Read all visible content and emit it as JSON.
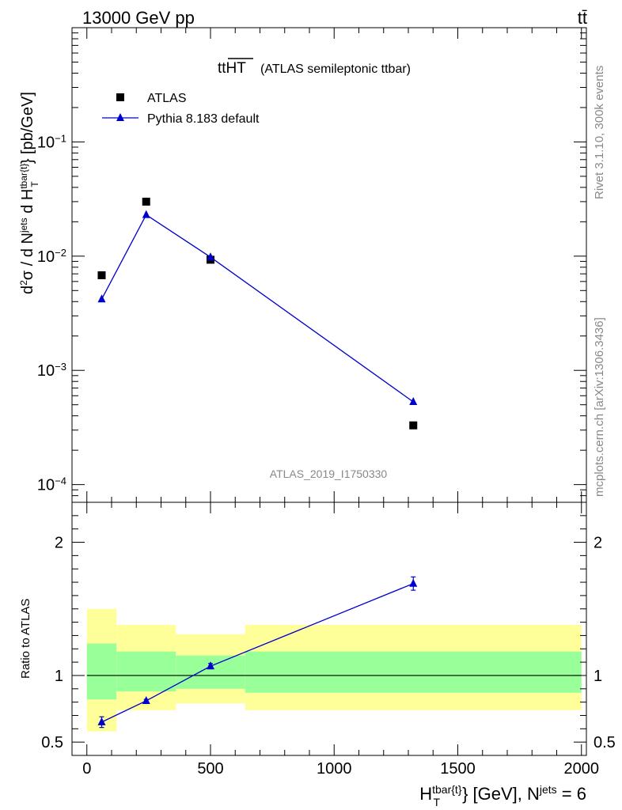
{
  "header": {
    "energy_label": "13000 GeV pp",
    "process_label": "tt̄"
  },
  "side": {
    "rivet_label": "Rivet 3.1.10,  300k events",
    "mcplots_label": "mcplots.cern.ch [arXiv:1306.3436]"
  },
  "chart_data": {
    "type": "scatter",
    "title_main": "ttHT",
    "title_note": "(ATLAS semileptonic ttbar)",
    "analysis_id": "ATLAS_2019_I1750330",
    "ylabel_main": "d²σ / d N^jets d H_T^tbar{t} [pb/GeV]",
    "ylabel_ratio": "Ratio to ATLAS",
    "xlabel": "H_T^tbar{t} [GeV], N^jets = 6",
    "xlim": [
      -60,
      2020
    ],
    "ylim_main_log": [
      7e-05,
      1.0
    ],
    "ylim_ratio": [
      0.4,
      2.3
    ],
    "x_ticks": [
      0,
      500,
      1000,
      1500,
      2000
    ],
    "x_tick_labels": [
      "0",
      "500",
      "1000",
      "1500",
      "2000"
    ],
    "main_y_ticks": [
      {
        "value": 0.1,
        "base": "10",
        "exp": "−1"
      },
      {
        "value": 0.01,
        "base": "10",
        "exp": "−2"
      },
      {
        "value": 0.001,
        "base": "10",
        "exp": "−3"
      },
      {
        "value": 0.0001,
        "base": "10",
        "exp": "−4"
      }
    ],
    "ratio_y_ticks": [
      0.5,
      1,
      2
    ],
    "ratio_y_tick_labels": [
      "0.5",
      "1",
      "2"
    ],
    "legend": [
      {
        "name": "ATLAS",
        "marker": "square",
        "color": "#000000"
      },
      {
        "name": "Pythia 8.183 default",
        "marker": "triangle",
        "color": "#0000cc"
      }
    ],
    "bins": [
      {
        "lo": 0,
        "hi": 120
      },
      {
        "lo": 120,
        "hi": 360
      },
      {
        "lo": 360,
        "hi": 640
      },
      {
        "lo": 640,
        "hi": 2000
      }
    ],
    "series": [
      {
        "name": "ATLAS",
        "x": [
          60,
          240,
          500,
          1320
        ],
        "values": [
          0.0068,
          0.03,
          0.0093,
          0.00033
        ]
      },
      {
        "name": "Pythia 8.183 default",
        "x": [
          60,
          240,
          500,
          1320
        ],
        "values": [
          0.0042,
          0.023,
          0.0098,
          0.00053
        ]
      }
    ],
    "ratio": {
      "mc_values": [
        0.65,
        0.81,
        1.07,
        1.69
      ],
      "mc_errors": [
        0.04,
        0.01,
        0.02,
        0.05
      ],
      "band_inner": [
        [
          0.82,
          1.24
        ],
        [
          0.88,
          1.18
        ],
        [
          0.9,
          1.15
        ],
        [
          0.87,
          1.18
        ]
      ],
      "band_outer": [
        [
          0.58,
          1.5
        ],
        [
          0.74,
          1.38
        ],
        [
          0.79,
          1.31
        ],
        [
          0.74,
          1.38
        ]
      ],
      "colors": {
        "inner": "#99ff99",
        "outer": "#ffff99",
        "line": "#000000"
      }
    },
    "colors": {
      "data": "#000000",
      "mc": "#0000cc"
    }
  }
}
